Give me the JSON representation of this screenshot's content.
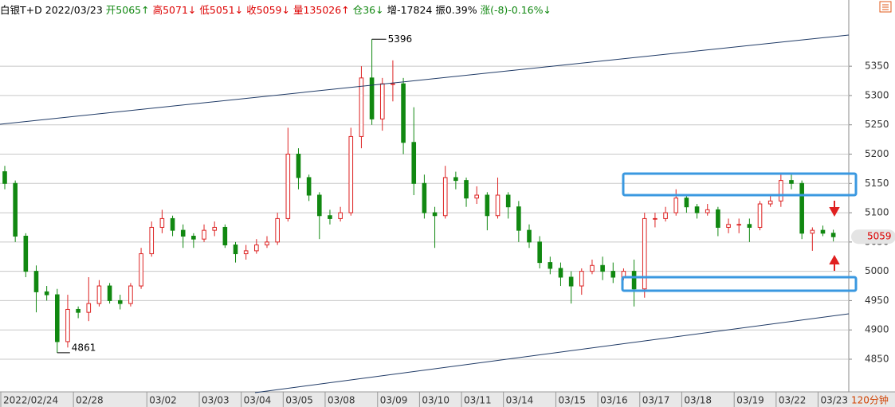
{
  "header": {
    "items": [
      {
        "text": "白银T+D",
        "color": "#000000"
      },
      {
        "text": "2022/03/23",
        "color": "#000000"
      },
      {
        "text": "开5065↑",
        "color": "#118811"
      },
      {
        "text": "高5071↓",
        "color": "#dd0000"
      },
      {
        "text": "低5051↓",
        "color": "#dd0000"
      },
      {
        "text": "收5059↓",
        "color": "#dd0000"
      },
      {
        "text": "量135026↑",
        "color": "#dd0000"
      },
      {
        "text": "仓36↓",
        "color": "#118811"
      },
      {
        "text": "增-17824",
        "color": "#000000"
      },
      {
        "text": "振0.39%",
        "color": "#000000"
      },
      {
        "text": "涨(-8)-0.16%↓",
        "color": "#118811"
      }
    ]
  },
  "chart_data": {
    "type": "candlestick",
    "period_label": "120分钟",
    "up_color": "#dd2222",
    "down_color": "#118811",
    "grid": true,
    "ylim": [
      4797,
      5463
    ],
    "yticks": [
      4850,
      4900,
      4950,
      5000,
      5050,
      5100,
      5150,
      5200,
      5250,
      5300,
      5350
    ],
    "categories": [
      "2022/02/24",
      null,
      null,
      null,
      null,
      null,
      null,
      "02/28",
      null,
      null,
      null,
      null,
      null,
      null,
      "03/02",
      null,
      null,
      null,
      null,
      "03/03",
      null,
      null,
      null,
      "03/04",
      null,
      null,
      null,
      "03/05",
      null,
      null,
      null,
      "03/08",
      null,
      null,
      null,
      null,
      "03/09",
      null,
      null,
      null,
      "03/10",
      null,
      null,
      null,
      "03/11",
      null,
      null,
      null,
      "03/14",
      null,
      null,
      null,
      null,
      "03/15",
      null,
      null,
      null,
      "03/16",
      null,
      null,
      null,
      "03/17",
      null,
      null,
      null,
      "03/18",
      null,
      null,
      null,
      null,
      "03/19",
      null,
      null,
      null,
      "03/22",
      null,
      null,
      null,
      "03/23",
      null
    ],
    "open": [
      5170,
      5150,
      5060,
      5000,
      4965,
      4960,
      4880,
      4935,
      4930,
      4945,
      4975,
      4950,
      4945,
      4975,
      5030,
      5075,
      5090,
      5070,
      5060,
      5055,
      5070,
      5075,
      5045,
      5030,
      5035,
      5045,
      5050,
      5090,
      5200,
      5160,
      5130,
      5095,
      5090,
      5100,
      5230,
      5330,
      5260,
      5320,
      5320,
      5220,
      5150,
      5100,
      5095,
      5160,
      5155,
      5125,
      5130,
      5095,
      5130,
      5110,
      5070,
      5050,
      5015,
      5005,
      4990,
      4975,
      5000,
      5010,
      5000,
      4990,
      5000,
      4970,
      5090,
      5090,
      5100,
      5125,
      5110,
      5100,
      5105,
      5075,
      5080,
      5080,
      5075,
      5115,
      5120,
      5155,
      5150,
      5065,
      5070,
      5065
    ],
    "high": [
      5180,
      5155,
      5065,
      5010,
      4975,
      4970,
      4960,
      4940,
      4990,
      4985,
      4980,
      4960,
      4980,
      5040,
      5085,
      5105,
      5095,
      5080,
      5065,
      5080,
      5085,
      5080,
      5050,
      5045,
      5055,
      5060,
      5100,
      5245,
      5210,
      5165,
      5135,
      5105,
      5110,
      5245,
      5350,
      5396,
      5330,
      5360,
      5330,
      5280,
      5165,
      5110,
      5180,
      5170,
      5160,
      5145,
      5135,
      5160,
      5135,
      5120,
      5080,
      5060,
      5025,
      5015,
      5000,
      5005,
      5020,
      5025,
      5015,
      5005,
      5020,
      5100,
      5100,
      5110,
      5140,
      5130,
      5115,
      5115,
      5110,
      5090,
      5090,
      5090,
      5120,
      5130,
      5165,
      5165,
      5155,
      5075,
      5078,
      5071
    ],
    "low": [
      5140,
      5050,
      4990,
      4930,
      4950,
      4861,
      4870,
      4920,
      4915,
      4940,
      4945,
      4935,
      4940,
      4970,
      5025,
      5065,
      5060,
      5040,
      5040,
      5050,
      5060,
      5040,
      5015,
      5020,
      5030,
      5040,
      5045,
      5085,
      5140,
      5120,
      5055,
      5080,
      5085,
      5095,
      5210,
      5250,
      5240,
      5290,
      5200,
      5130,
      5090,
      5040,
      5090,
      5140,
      5110,
      5115,
      5070,
      5090,
      5090,
      5050,
      5040,
      5005,
      4995,
      4975,
      4945,
      4960,
      4995,
      4985,
      4980,
      4985,
      4940,
      4955,
      5075,
      5085,
      5095,
      5100,
      5090,
      5095,
      5060,
      5065,
      5065,
      5050,
      5070,
      5110,
      5110,
      5140,
      5055,
      5035,
      5060,
      5051
    ],
    "close": [
      5150,
      5060,
      5000,
      4965,
      4960,
      4880,
      4935,
      4930,
      4945,
      4975,
      4950,
      4945,
      4975,
      5030,
      5075,
      5090,
      5070,
      5060,
      5055,
      5070,
      5075,
      5045,
      5030,
      5035,
      5045,
      5050,
      5090,
      5200,
      5160,
      5130,
      5095,
      5090,
      5100,
      5230,
      5330,
      5260,
      5320,
      5320,
      5220,
      5150,
      5100,
      5095,
      5160,
      5155,
      5125,
      5130,
      5095,
      5130,
      5110,
      5070,
      5050,
      5015,
      5005,
      4990,
      4975,
      5000,
      5010,
      5000,
      4990,
      5000,
      4970,
      5090,
      5090,
      5100,
      5125,
      5110,
      5100,
      5105,
      5075,
      5080,
      5080,
      5075,
      5115,
      5120,
      5155,
      5150,
      5065,
      5070,
      5065,
      5059
    ]
  }
}
